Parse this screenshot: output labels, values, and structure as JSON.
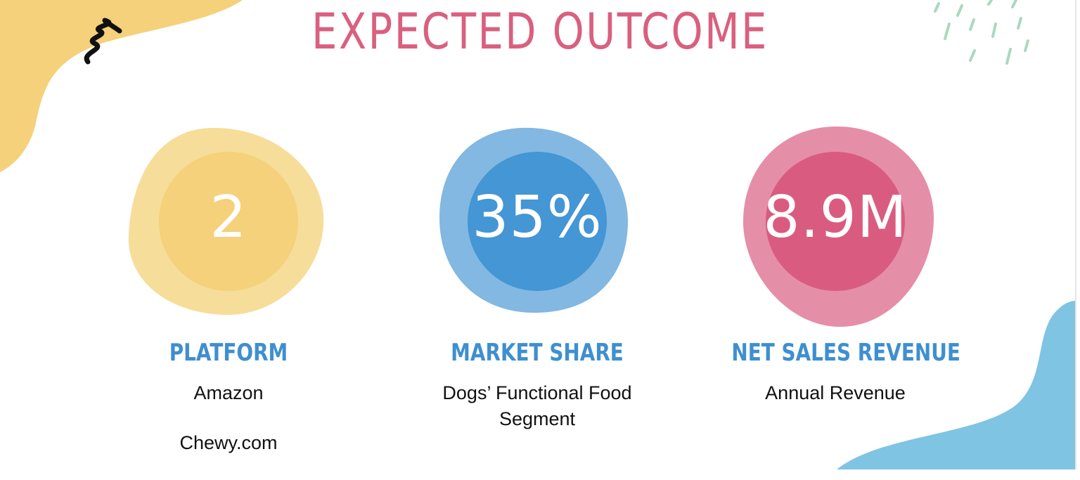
{
  "title": "EXPECTED OUTCOME",
  "items": [
    {
      "value": "2",
      "label": "PLATFORM",
      "description": [
        "Amazon",
        "Chewy.com"
      ]
    },
    {
      "value": "35%",
      "label": "MARKET SHARE",
      "description": [
        "Dogs’ Functional Food Segment"
      ]
    },
    {
      "value": "8.9M",
      "label": "NET SALES REVENUE",
      "description": [
        "Annual Revenue"
      ]
    }
  ]
}
